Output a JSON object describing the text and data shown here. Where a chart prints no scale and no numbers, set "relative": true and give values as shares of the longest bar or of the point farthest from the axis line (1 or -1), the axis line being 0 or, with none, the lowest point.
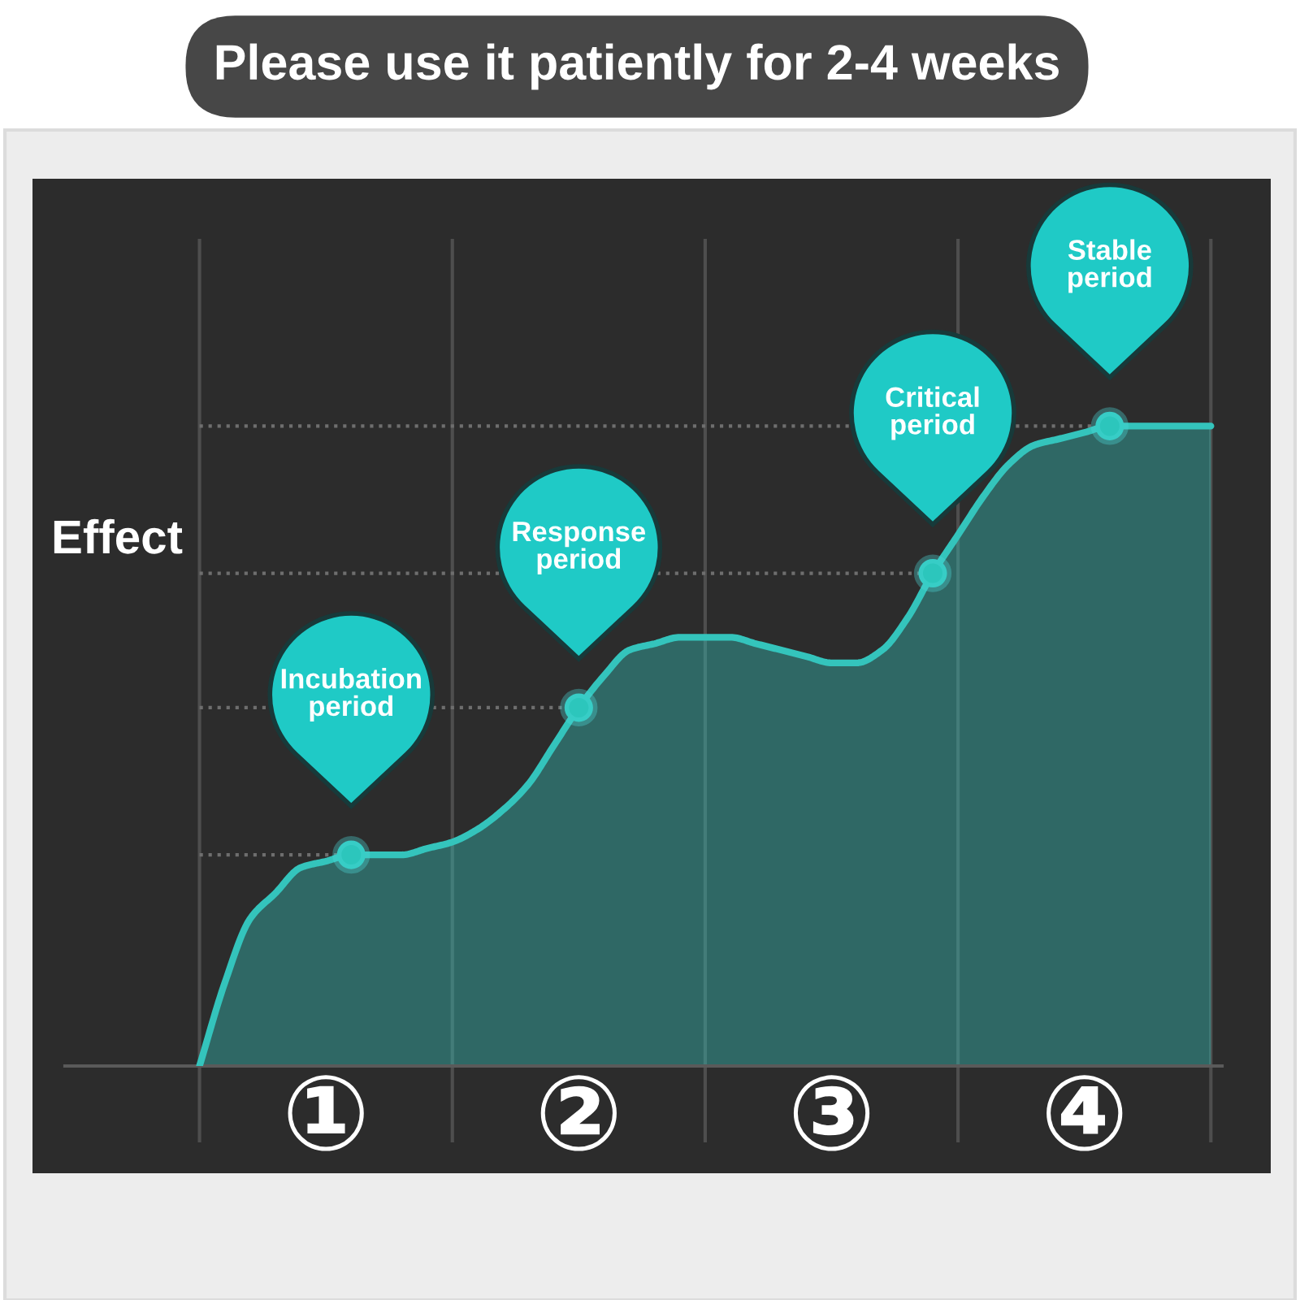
{
  "chart_data": {
    "type": "area",
    "title": "Please use it patiently for 2-4 weeks",
    "ylabel": "Effect",
    "relative": true,
    "grid": "x",
    "categories": [
      null,
      null,
      null,
      null,
      null,
      "①",
      null,
      null,
      null,
      null,
      null,
      null,
      null,
      null,
      null,
      "②",
      null,
      null,
      null,
      null,
      null,
      null,
      null,
      null,
      null,
      "③",
      null,
      null,
      null,
      null,
      null,
      null,
      null,
      null,
      null,
      "④",
      null,
      null,
      null,
      null,
      null
    ],
    "series": [
      {
        "color": "#34c4bc",
        "values": [
          0.0,
          0.13,
          0.23,
          0.27,
          0.31,
          0.32,
          0.33,
          0.33,
          0.33,
          0.34,
          0.35,
          0.37,
          0.4,
          0.44,
          0.5,
          0.56,
          0.61,
          0.65,
          0.66,
          0.67,
          0.67,
          0.67,
          0.66,
          0.65,
          0.64,
          0.63,
          0.63,
          0.65,
          0.7,
          0.77,
          0.83,
          0.89,
          0.94,
          0.97,
          0.98,
          0.99,
          1.0,
          1.0,
          1.0,
          1.0,
          1.0
        ]
      },
      {
        "type": "scatter",
        "marker": "circle",
        "color": "#2cc6bc",
        "values": [
          null,
          null,
          null,
          null,
          null,
          null,
          0.33,
          null,
          null,
          null,
          null,
          null,
          null,
          null,
          null,
          0.56,
          null,
          null,
          null,
          null,
          null,
          null,
          null,
          null,
          null,
          null,
          null,
          null,
          null,
          0.77,
          null,
          null,
          null,
          null,
          null,
          null,
          1.0,
          null,
          null,
          null,
          null
        ]
      }
    ],
    "ref_lines": [
      {
        "axis": "y",
        "value": 0.33,
        "color": "#6e6e6e",
        "line_style": "dotted"
      },
      {
        "axis": "y",
        "value": 0.56,
        "color": "#6e6e6e",
        "line_style": "dotted"
      },
      {
        "axis": "y",
        "value": 0.77,
        "color": "#6e6e6e",
        "line_style": "dotted"
      },
      {
        "axis": "y",
        "value": 1.0,
        "color": "#6e6e6e",
        "line_style": "dotted"
      }
    ],
    "annotations": [
      "Incubation\nperiod",
      "Response\nperiod",
      "Critical\nperiod",
      "Stable\nperiod"
    ]
  }
}
